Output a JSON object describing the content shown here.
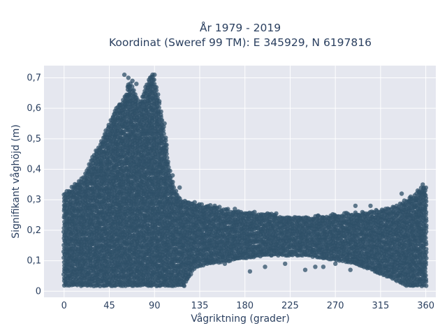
{
  "chart_data": {
    "type": "scatter",
    "title_line1": "År 1979 - 2019",
    "title_line2": "Koordinat (Sweref 99 TM): E 345929, N 6197816",
    "xlabel": "Vågriktning (grader)",
    "ylabel": "Signifikant våghöjd (m)",
    "xlim": [
      -20,
      370
    ],
    "ylim": [
      -0.02,
      0.74
    ],
    "x_ticks": [
      0,
      45,
      90,
      135,
      180,
      225,
      270,
      315,
      360
    ],
    "x_tick_labels": [
      "0",
      "45",
      "90",
      "135",
      "180",
      "225",
      "270",
      "315",
      "360"
    ],
    "y_ticks": [
      0,
      0.1,
      0.2,
      0.3,
      0.4,
      0.5,
      0.6,
      0.7
    ],
    "y_tick_labels": [
      "0",
      "0,1",
      "0,2",
      "0,3",
      "0,4",
      "0,5",
      "0,6",
      "0,7"
    ],
    "marker_color": "#2f5068",
    "plot_bg": "#e5e7ef",
    "grid": true,
    "envelope_upper": [
      [
        0,
        0.32
      ],
      [
        10,
        0.35
      ],
      [
        20,
        0.38
      ],
      [
        30,
        0.45
      ],
      [
        40,
        0.52
      ],
      [
        50,
        0.59
      ],
      [
        60,
        0.64
      ],
      [
        65,
        0.69
      ],
      [
        70,
        0.66
      ],
      [
        75,
        0.62
      ],
      [
        80,
        0.66
      ],
      [
        85,
        0.71
      ],
      [
        90,
        0.7
      ],
      [
        95,
        0.62
      ],
      [
        100,
        0.52
      ],
      [
        105,
        0.4
      ],
      [
        110,
        0.34
      ],
      [
        115,
        0.31
      ],
      [
        120,
        0.3
      ],
      [
        130,
        0.29
      ],
      [
        140,
        0.285
      ],
      [
        160,
        0.27
      ],
      [
        180,
        0.26
      ],
      [
        200,
        0.255
      ],
      [
        220,
        0.25
      ],
      [
        240,
        0.245
      ],
      [
        260,
        0.25
      ],
      [
        280,
        0.255
      ],
      [
        300,
        0.26
      ],
      [
        320,
        0.27
      ],
      [
        330,
        0.28
      ],
      [
        340,
        0.3
      ],
      [
        350,
        0.32
      ],
      [
        355,
        0.34
      ],
      [
        360,
        0.35
      ]
    ],
    "envelope_lower": [
      [
        0,
        0.02
      ],
      [
        30,
        0.02
      ],
      [
        60,
        0.02
      ],
      [
        90,
        0.02
      ],
      [
        110,
        0.02
      ],
      [
        120,
        0.02
      ],
      [
        125,
        0.05
      ],
      [
        130,
        0.08
      ],
      [
        140,
        0.09
      ],
      [
        160,
        0.1
      ],
      [
        180,
        0.11
      ],
      [
        200,
        0.12
      ],
      [
        220,
        0.12
      ],
      [
        240,
        0.12
      ],
      [
        260,
        0.11
      ],
      [
        280,
        0.1
      ],
      [
        300,
        0.08
      ],
      [
        315,
        0.06
      ],
      [
        330,
        0.04
      ],
      [
        340,
        0.02
      ],
      [
        360,
        0.02
      ]
    ],
    "outliers": [
      [
        60,
        0.71
      ],
      [
        64,
        0.7
      ],
      [
        68,
        0.69
      ],
      [
        72,
        0.68
      ],
      [
        88,
        0.71
      ],
      [
        90,
        0.71
      ],
      [
        52,
        0.6
      ],
      [
        55,
        0.61
      ],
      [
        100,
        0.55
      ],
      [
        102,
        0.48
      ],
      [
        108,
        0.38
      ],
      [
        115,
        0.34
      ],
      [
        150,
        0.28
      ],
      [
        170,
        0.27
      ],
      [
        185,
        0.065
      ],
      [
        200,
        0.08
      ],
      [
        220,
        0.09
      ],
      [
        240,
        0.07
      ],
      [
        258,
        0.08
      ],
      [
        270,
        0.09
      ],
      [
        285,
        0.07
      ],
      [
        290,
        0.28
      ],
      [
        305,
        0.28
      ],
      [
        320,
        0.27
      ],
      [
        336,
        0.32
      ],
      [
        345,
        0.31
      ],
      [
        352,
        0.33
      ],
      [
        357,
        0.35
      ],
      [
        358,
        0.32
      ],
      [
        296,
        0.09
      ],
      [
        250,
        0.08
      ],
      [
        160,
        0.09
      ],
      [
        145,
        0.1
      ],
      [
        130,
        0.1
      ],
      [
        310,
        0.07
      ]
    ]
  }
}
